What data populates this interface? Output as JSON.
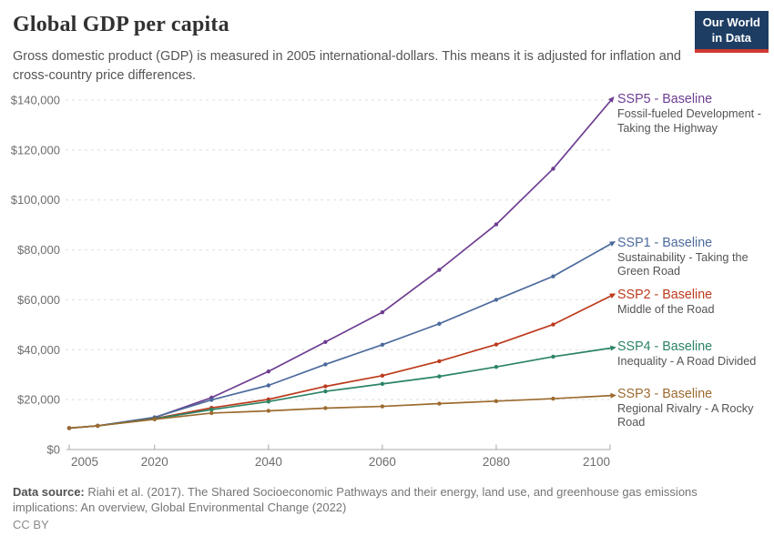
{
  "header": {
    "title": "Global GDP per capita",
    "subtitle": "Gross domestic product (GDP) is measured in 2005 international-dollars. This means it is adjusted for inflation and cross-country price differences.",
    "logo": {
      "line1": "Our World",
      "line2": "in Data",
      "bg": "#1d3d63",
      "accent": "#cf3832"
    }
  },
  "chart_data": {
    "type": "line",
    "x": [
      2005,
      2010,
      2020,
      2030,
      2040,
      2050,
      2060,
      2070,
      2080,
      2090,
      2100
    ],
    "series": [
      {
        "name": "SSP5 - Baseline",
        "description": "Fossil-fueled Development - Taking the Highway",
        "color": "#6d3e91",
        "values": [
          8600,
          9500,
          12800,
          20800,
          31300,
          43100,
          55000,
          72000,
          90200,
          112500,
          139500
        ]
      },
      {
        "name": "SSP1 - Baseline",
        "description": "Sustainability - Taking the Green Road",
        "color": "#4c6a9c",
        "values": [
          8600,
          9500,
          12900,
          19900,
          25700,
          34100,
          42000,
          50400,
          60000,
          69400,
          82200
        ]
      },
      {
        "name": "SSP2 - Baseline",
        "description": "Middle of the Road",
        "color": "#bc3a1c",
        "values": [
          8600,
          9500,
          12400,
          16700,
          20100,
          25300,
          29600,
          35400,
          42100,
          50100,
          61400
        ]
      },
      {
        "name": "SSP4 - Baseline",
        "description": "Inequality - A Road Divided",
        "color": "#2c8465",
        "values": [
          8600,
          9500,
          12300,
          16000,
          19200,
          23300,
          26300,
          29300,
          33100,
          37200,
          40600
        ]
      },
      {
        "name": "SSP3 - Baseline",
        "description": "Regional Rivalry - A Rocky Road",
        "color": "#9c6b2f",
        "values": [
          8600,
          9500,
          12100,
          14600,
          15500,
          16600,
          17300,
          18400,
          19400,
          20400,
          21600
        ]
      }
    ],
    "xlabel": "",
    "ylabel": "",
    "ylim": [
      0,
      140000
    ],
    "ytick_step": 20000,
    "ytick_labels": [
      "$0",
      "$20,000",
      "$40,000",
      "$60,000",
      "$80,000",
      "$100,000",
      "$120,000",
      "$140,000"
    ],
    "xticks": [
      2005,
      2020,
      2040,
      2060,
      2080,
      2100
    ],
    "grid": "horizontal-dashed",
    "legend_position": "right-of-line-ends"
  },
  "footer": {
    "source_label": "Data source:",
    "source_text": " Riahi et al. (2017). The Shared Socioeconomic Pathways and their energy, land use, and greenhouse gas emissions implications: An overview, Global Environmental Change (2022)",
    "license": "CC BY"
  }
}
